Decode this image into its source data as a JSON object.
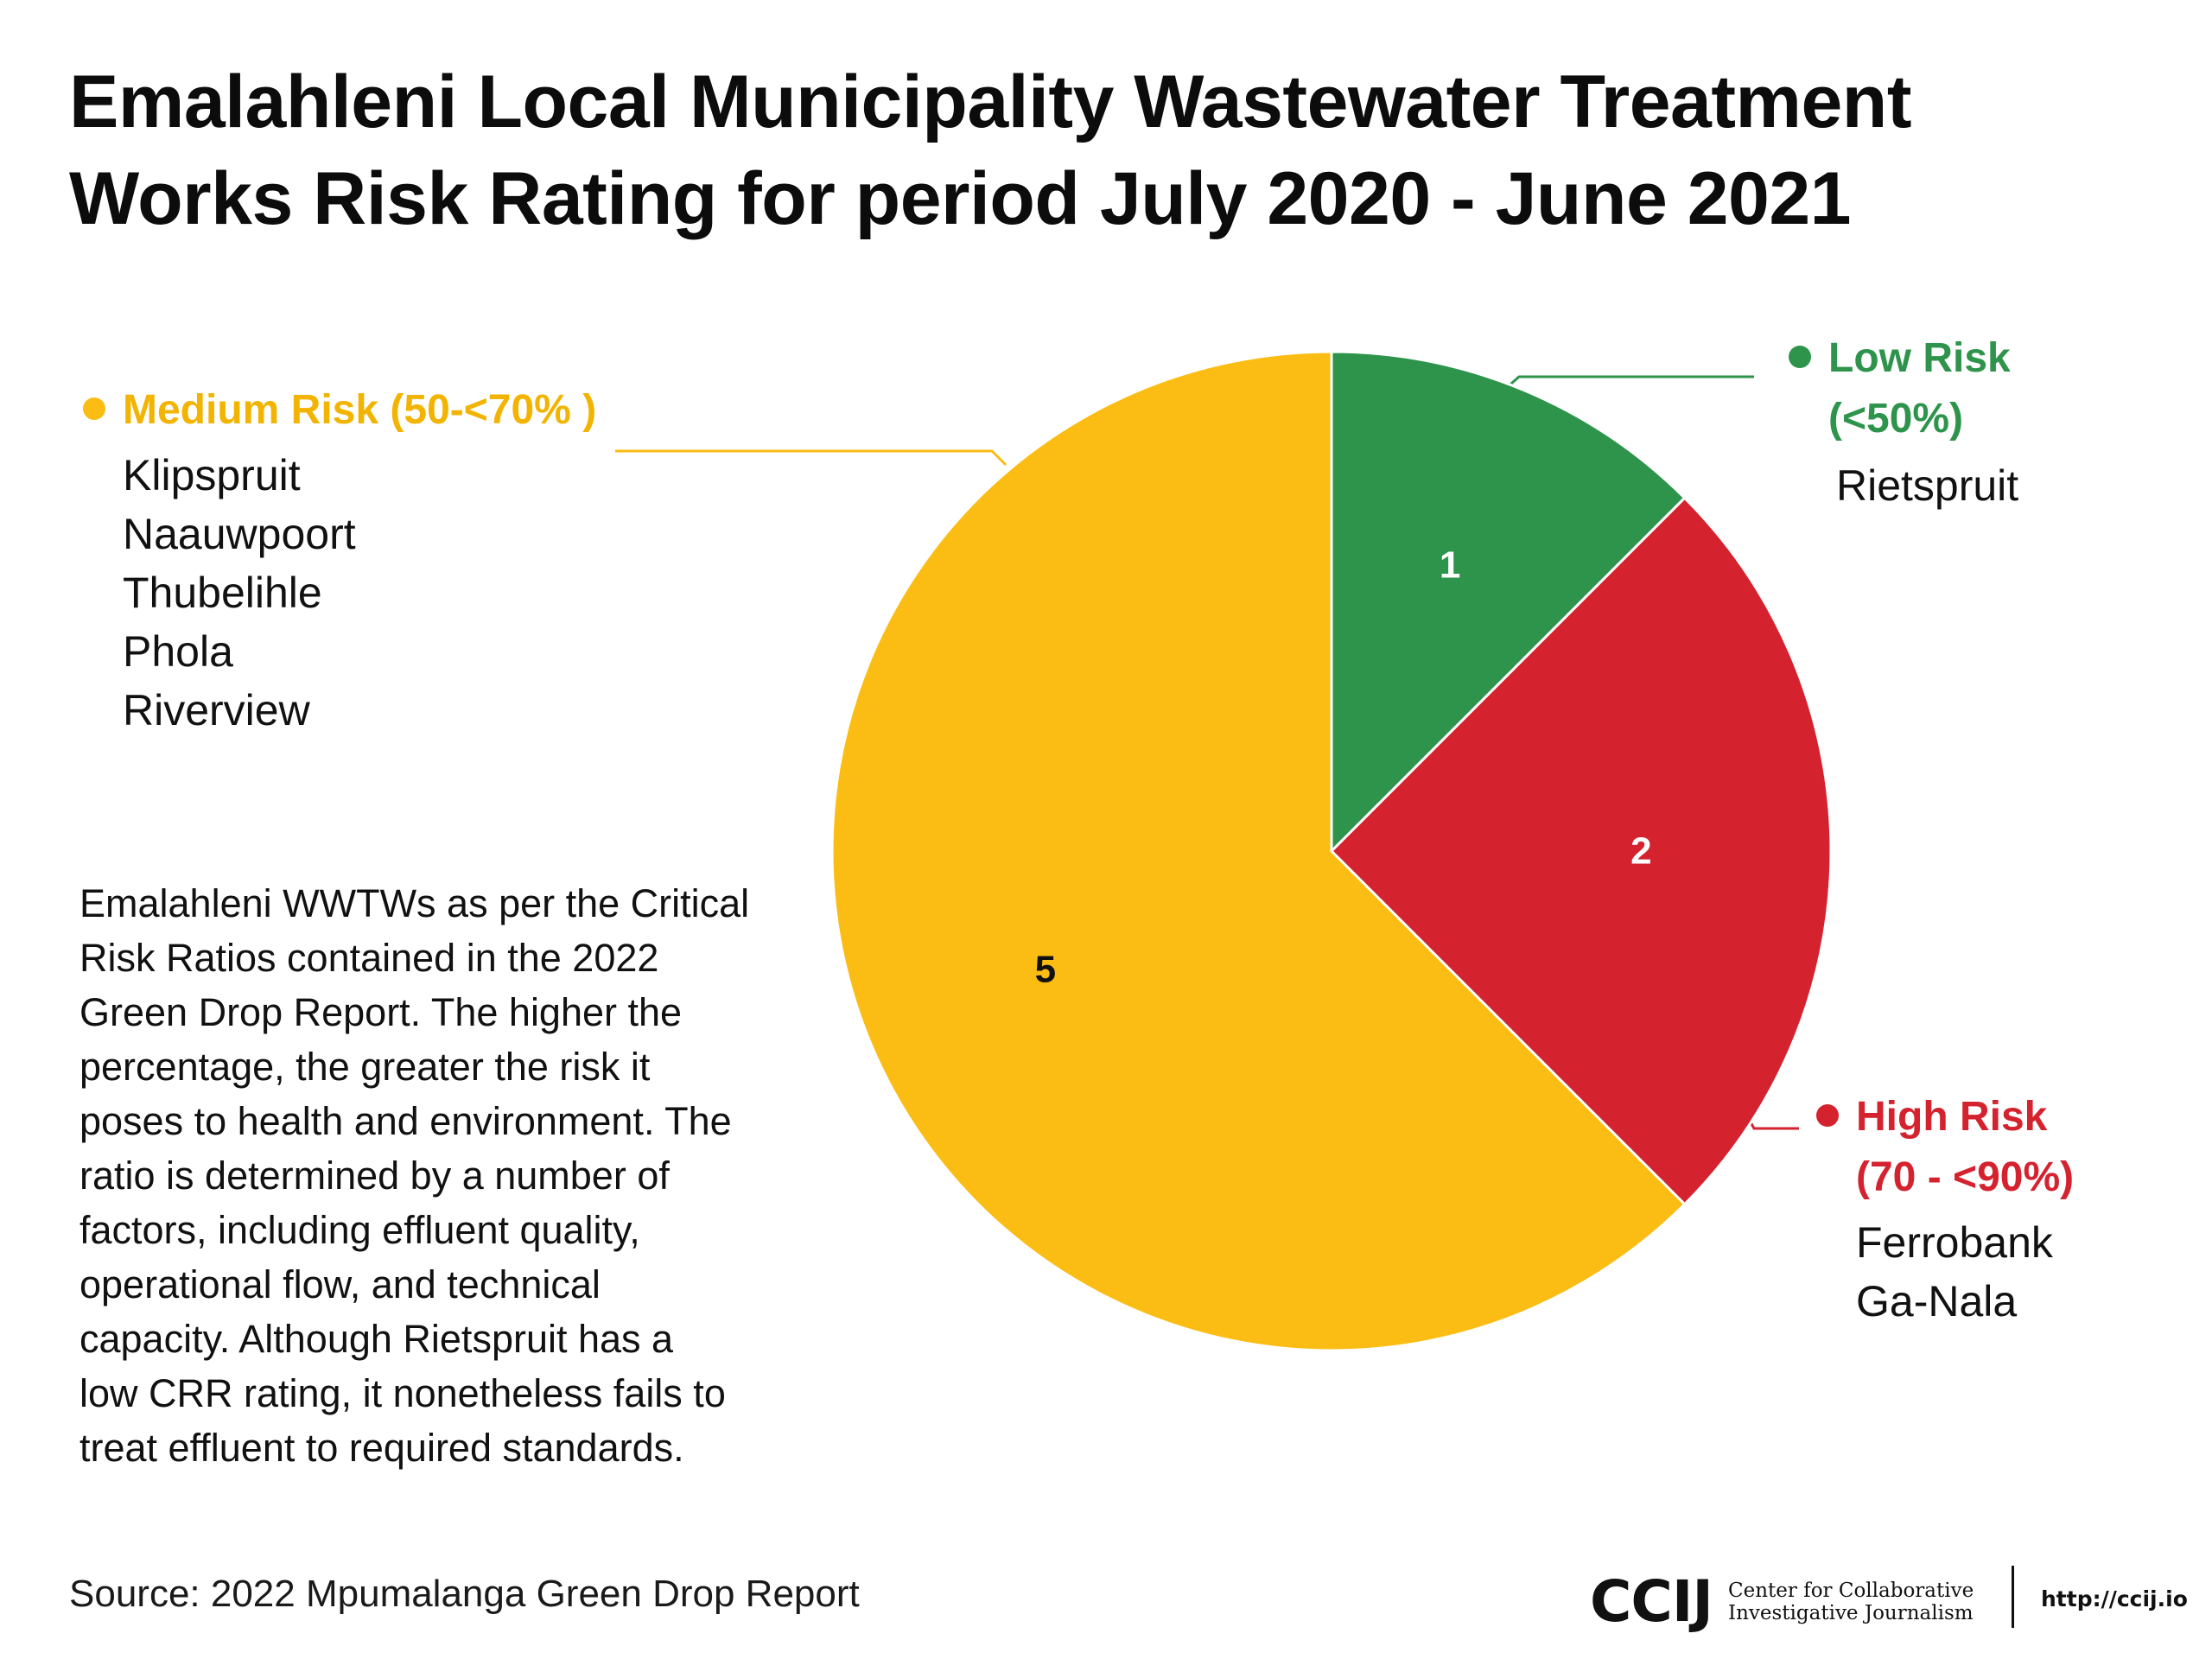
{
  "title": {
    "line1": "Emalahleni Local Municipality Wastewater Treatment",
    "line2": "Works Risk Rating for period July 2020 - June 2021"
  },
  "chart_data": {
    "type": "pie",
    "slices": [
      {
        "category": "Low Risk (<50%)",
        "value": 1,
        "color": "#2e944c",
        "label_color": "#ffffff",
        "facilities": [
          "Rietspruit"
        ]
      },
      {
        "category": "High Risk (70 - <90%)",
        "value": 2,
        "color": "#d5222f",
        "label_color": "#ffffff",
        "facilities": [
          "Ferrobank",
          "Ga-Nala"
        ]
      },
      {
        "category": "Medium Risk (50-<70% )",
        "value": 5,
        "color": "#fbbd13",
        "label_color": "#111111",
        "facilities": [
          "Klipspruit",
          "Naauwpoort",
          "Thubelihle",
          "Phola",
          "Riverview"
        ]
      }
    ]
  },
  "legend": {
    "medium": {
      "label_lines": [
        "Medium Risk (50-<70% )"
      ],
      "color": "#fbbd13",
      "text_color": "#f2b400",
      "items": [
        "Klipspruit",
        "Naauwpoort",
        "Thubelihle",
        "Phola",
        "Riverview"
      ]
    },
    "low": {
      "label_lines": [
        "Low Risk",
        "(<50%)"
      ],
      "color": "#2e944c",
      "text_color": "#2e944c",
      "items": [
        "Rietspruit"
      ]
    },
    "high": {
      "label_lines": [
        "High Risk",
        "(70 - <90%)"
      ],
      "color": "#d5222f",
      "text_color": "#d5222f",
      "items": [
        "Ferrobank",
        "Ga-Nala"
      ]
    }
  },
  "note": {
    "lines": [
      "Emalahleni WWTWs as per the Critical",
      "Risk Ratios contained in the 2022",
      "Green Drop Report. The higher the",
      "percentage, the greater the risk it",
      "poses to health and environment. The",
      "ratio is determined by a number of",
      "factors, including effluent quality,",
      "operational flow, and technical",
      "capacity. Although Rietspruit has a",
      "low CRR rating, it nonetheless fails to",
      "treat effluent to required standards."
    ]
  },
  "source": "Source: 2022 Mpumalanga Green Drop Report",
  "footer": {
    "logo": "CCIJ",
    "org_line1": "Center for Collaborative",
    "org_line2": "Investigative Journalism",
    "url": "http://ccij.io"
  }
}
